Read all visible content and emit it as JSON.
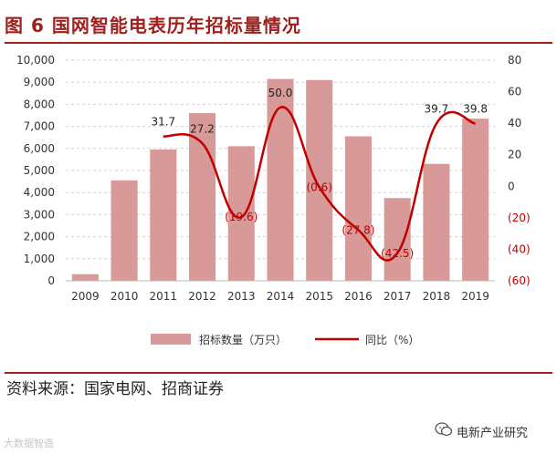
{
  "figure_title": "图 6  国网智能电表历年招标量情况",
  "source": "资料来源：国家电网、招商证券",
  "watermark_left": "大数据智造",
  "watermark_right": "电新产业研究",
  "colors": {
    "bar": "#d79a98",
    "line": "#c00000",
    "negative_label": "#c00000",
    "title": "#a0201d",
    "grid": "#d0d0d0"
  },
  "chart_data": {
    "type": "bar",
    "title": "国网智能电表历年招标量情况",
    "categories": [
      "2009",
      "2010",
      "2011",
      "2012",
      "2013",
      "2014",
      "2015",
      "2016",
      "2017",
      "2018",
      "2019"
    ],
    "series": [
      {
        "name": "招标数量（万只）",
        "type": "bar",
        "axis": "left",
        "values": [
          300,
          4550,
          5950,
          7600,
          6100,
          9150,
          9100,
          6550,
          3750,
          5300,
          7350
        ]
      },
      {
        "name": "同比（%）",
        "type": "line",
        "axis": "right",
        "values": [
          null,
          null,
          31.7,
          27.2,
          -19.6,
          50.0,
          -0.6,
          -27.8,
          -42.5,
          39.7,
          39.8
        ],
        "labels": [
          "",
          "",
          "31.7",
          "27.2",
          "(19.6)",
          "50.0",
          "(0.6)",
          "(27.8)",
          "(42.5)",
          "39.7",
          "39.8"
        ]
      }
    ],
    "y_left": {
      "min": 0,
      "max": 10000,
      "step": 1000,
      "tick_labels": [
        "0",
        "1,000",
        "2,000",
        "3,000",
        "4,000",
        "5,000",
        "6,000",
        "7,000",
        "8,000",
        "9,000",
        "10,000"
      ]
    },
    "y_right": {
      "min": -60,
      "max": 80,
      "step": 20,
      "tick_labels": [
        "(60)",
        "(40)",
        "(20)",
        "0",
        "20",
        "40",
        "60",
        "80"
      ]
    },
    "grid": true,
    "legend": [
      "招标数量（万只）",
      "同比（%）"
    ],
    "legend_position": "bottom"
  }
}
